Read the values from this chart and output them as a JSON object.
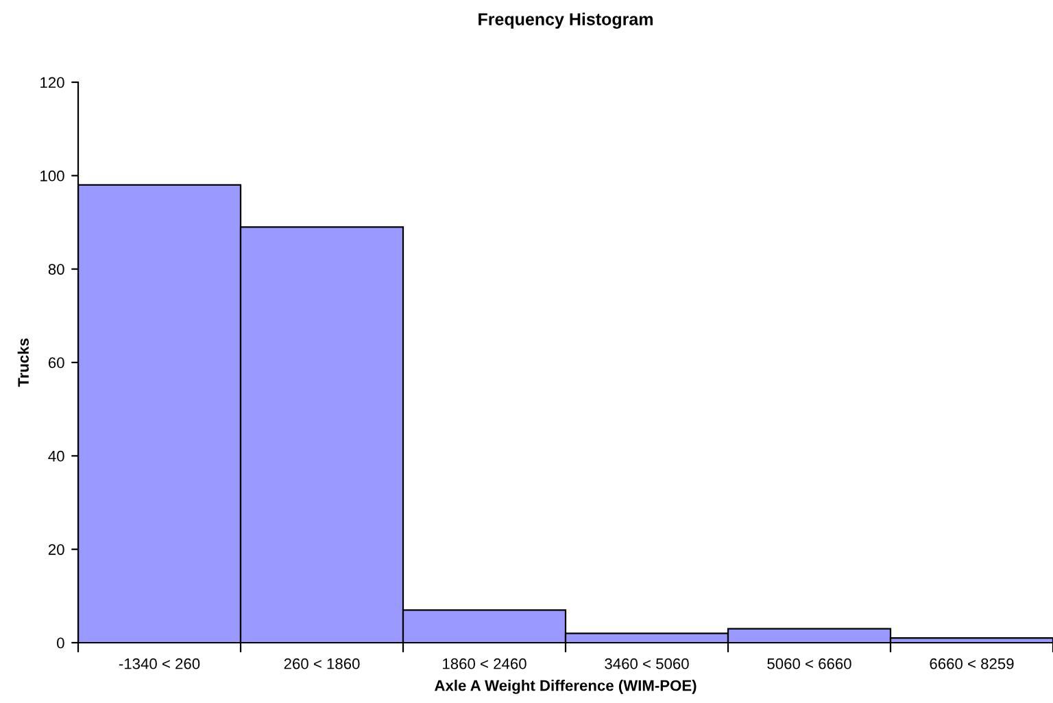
{
  "chart_data": {
    "type": "bar",
    "title": "Frequency Histogram",
    "xlabel": "Axle A Weight Difference (WIM-POE)",
    "ylabel": "Trucks",
    "categories": [
      "-1340 < 260",
      "260 < 1860",
      "1860 < 2460",
      "3460 < 5060",
      "5060 < 6660",
      "6660 < 8259"
    ],
    "values": [
      98,
      89,
      7,
      2,
      3,
      1
    ],
    "color": "#9999ff",
    "ylim": [
      0,
      120
    ],
    "yticks": [
      0,
      20,
      40,
      60,
      80,
      100,
      120
    ],
    "grid": false,
    "legend": false
  }
}
